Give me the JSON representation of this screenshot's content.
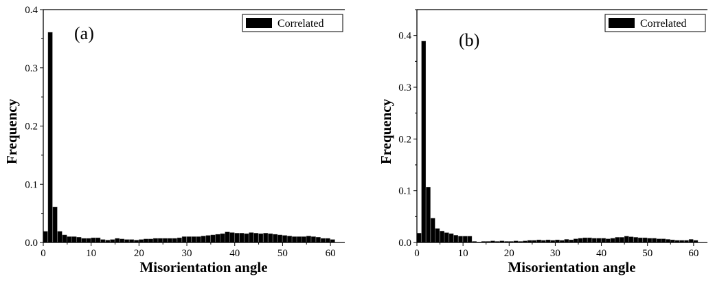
{
  "chart_data": [
    {
      "type": "bar",
      "panel_label": "(a)",
      "xlabel": "Misorientation angle",
      "ylabel": "Frequency",
      "xlim": [
        0,
        63
      ],
      "ylim": [
        0,
        0.4
      ],
      "x_ticks": [
        0,
        10,
        20,
        30,
        40,
        50,
        60
      ],
      "y_ticks": [
        0.0,
        0.1,
        0.2,
        0.3,
        0.4
      ],
      "x_tick_labels": [
        "0",
        "10",
        "20",
        "30",
        "40",
        "50",
        "60"
      ],
      "y_tick_labels": [
        "0.0",
        "0.1",
        "0.2",
        "0.3",
        "0.4"
      ],
      "legend_position": "top-right",
      "bar_color": "#000000",
      "series": [
        {
          "name": "Correlated",
          "x": [
            0,
            1,
            2,
            3,
            4,
            5,
            6,
            7,
            8,
            9,
            10,
            11,
            12,
            13,
            14,
            15,
            16,
            17,
            18,
            19,
            20,
            21,
            22,
            23,
            24,
            25,
            26,
            27,
            28,
            29,
            30,
            31,
            32,
            33,
            34,
            35,
            36,
            37,
            38,
            39,
            40,
            41,
            42,
            43,
            44,
            45,
            46,
            47,
            48,
            49,
            50,
            51,
            52,
            53,
            54,
            55,
            56,
            57,
            58,
            59,
            60
          ],
          "values": [
            0.019,
            0.361,
            0.061,
            0.019,
            0.013,
            0.01,
            0.01,
            0.009,
            0.007,
            0.007,
            0.008,
            0.008,
            0.005,
            0.004,
            0.005,
            0.007,
            0.006,
            0.005,
            0.005,
            0.004,
            0.005,
            0.006,
            0.006,
            0.007,
            0.007,
            0.007,
            0.007,
            0.007,
            0.008,
            0.01,
            0.01,
            0.01,
            0.01,
            0.011,
            0.012,
            0.013,
            0.014,
            0.015,
            0.018,
            0.017,
            0.016,
            0.016,
            0.015,
            0.017,
            0.016,
            0.015,
            0.016,
            0.015,
            0.014,
            0.013,
            0.012,
            0.011,
            0.01,
            0.01,
            0.01,
            0.011,
            0.01,
            0.009,
            0.007,
            0.007,
            0.005
          ]
        }
      ]
    },
    {
      "type": "bar",
      "panel_label": "(b)",
      "xlabel": "Misorientation angle",
      "ylabel": "Frequency",
      "xlim": [
        0,
        63
      ],
      "ylim": [
        0,
        0.45
      ],
      "x_ticks": [
        0,
        10,
        20,
        30,
        40,
        50,
        60
      ],
      "y_ticks": [
        0.0,
        0.1,
        0.2,
        0.3,
        0.4
      ],
      "x_tick_labels": [
        "0",
        "10",
        "20",
        "30",
        "40",
        "50",
        "60"
      ],
      "y_tick_labels": [
        "0.0",
        "0.1",
        "0.2",
        "0.3",
        "0.4"
      ],
      "legend_position": "top-right",
      "bar_color": "#000000",
      "series": [
        {
          "name": "Correlated",
          "x": [
            0,
            1,
            2,
            3,
            4,
            5,
            6,
            7,
            8,
            9,
            10,
            11,
            12,
            13,
            14,
            15,
            16,
            17,
            18,
            19,
            20,
            21,
            22,
            23,
            24,
            25,
            26,
            27,
            28,
            29,
            30,
            31,
            32,
            33,
            34,
            35,
            36,
            37,
            38,
            39,
            40,
            41,
            42,
            43,
            44,
            45,
            46,
            47,
            48,
            49,
            50,
            51,
            52,
            53,
            54,
            55,
            56,
            57,
            58,
            59,
            60
          ],
          "values": [
            0.018,
            0.389,
            0.107,
            0.047,
            0.027,
            0.022,
            0.019,
            0.017,
            0.014,
            0.012,
            0.012,
            0.012,
            0.002,
            0.001,
            0.002,
            0.002,
            0.003,
            0.002,
            0.003,
            0.002,
            0.002,
            0.003,
            0.002,
            0.003,
            0.004,
            0.004,
            0.005,
            0.004,
            0.005,
            0.004,
            0.005,
            0.004,
            0.006,
            0.005,
            0.007,
            0.008,
            0.009,
            0.009,
            0.008,
            0.008,
            0.008,
            0.007,
            0.008,
            0.01,
            0.01,
            0.012,
            0.011,
            0.01,
            0.009,
            0.009,
            0.008,
            0.008,
            0.007,
            0.007,
            0.006,
            0.005,
            0.004,
            0.004,
            0.004,
            0.006,
            0.004
          ]
        }
      ]
    }
  ]
}
